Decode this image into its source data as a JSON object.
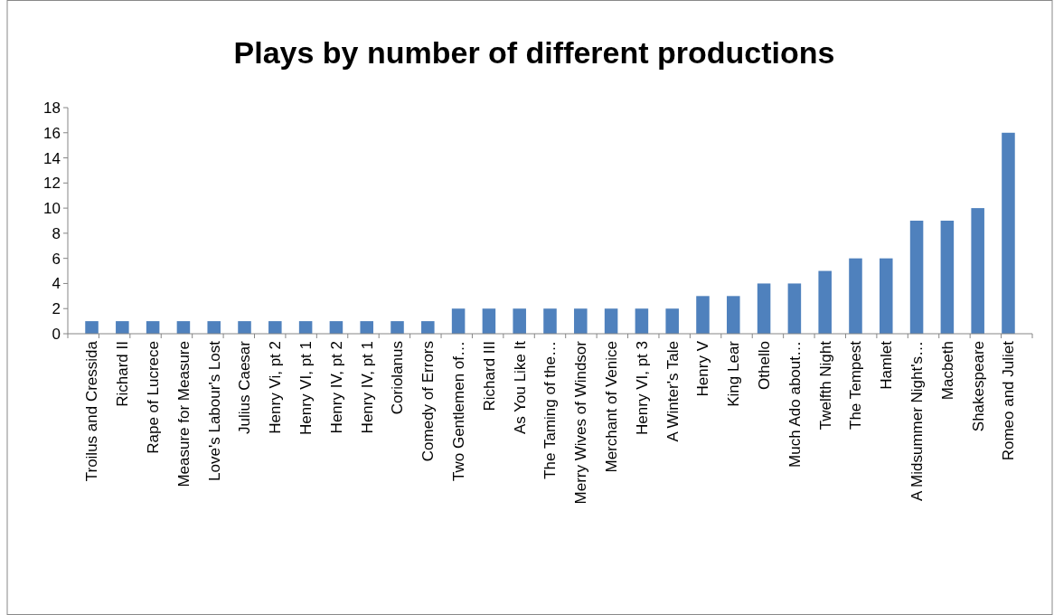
{
  "chart_data": {
    "type": "bar",
    "title": "Plays by number of different productions",
    "categories": [
      "Troilus and Cressida",
      "Richard II",
      "Rape of Lucrece",
      "Measure for Measure",
      "Love's Labour's Lost",
      "Julius Caesar",
      "Henry Vi, pt 2",
      "Henry VI, pt 1",
      "Henry IV, pt 2",
      "Henry IV, pt 1",
      "Coriolanus",
      "Comedy of Errors",
      "Two Gentlemen of…",
      "Richard III",
      "As You Like It",
      "The Taming of the…",
      "Merry Wives of Windsor",
      "Merchant of Venice",
      "Henry VI, pt 3",
      "A Winter's Tale",
      "Henry V",
      "King Lear",
      "Othello",
      "Much Ado about…",
      "Twelfth Night",
      "The Tempest",
      "Hamlet",
      "A Midsummer Night's…",
      "Macbeth",
      "Shakespeare",
      "Romeo and Juliet"
    ],
    "values": [
      1,
      1,
      1,
      1,
      1,
      1,
      1,
      1,
      1,
      1,
      1,
      1,
      2,
      2,
      2,
      2,
      2,
      2,
      2,
      2,
      3,
      3,
      4,
      4,
      5,
      6,
      6,
      9,
      9,
      10,
      16
    ],
    "color": "#4f81bd",
    "ylim": [
      0,
      18
    ],
    "yticks": [
      0,
      2,
      4,
      6,
      8,
      10,
      12,
      14,
      16,
      18
    ]
  }
}
